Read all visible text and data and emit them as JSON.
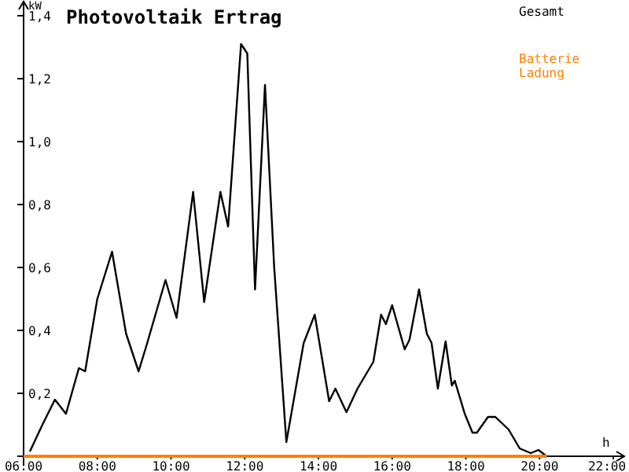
{
  "chart_data": {
    "type": "line",
    "title": "Photovoltaik Ertrag",
    "xlabel": "h",
    "ylabel": "kW",
    "xlim": [
      6,
      22
    ],
    "xticks": [
      {
        "value": 6,
        "label": "06:00"
      },
      {
        "value": 8,
        "label": "08:00"
      },
      {
        "value": 10,
        "label": "10:00"
      },
      {
        "value": 12,
        "label": "12:00"
      },
      {
        "value": 14,
        "label": "14:00"
      },
      {
        "value": 16,
        "label": "16:00"
      },
      {
        "value": 18,
        "label": "18:00"
      },
      {
        "value": 20,
        "label": "20:00"
      },
      {
        "value": 22,
        "label": "22:00"
      }
    ],
    "ylim": [
      0,
      1.4
    ],
    "yticks": [
      {
        "value": 0.2,
        "label": "0,2"
      },
      {
        "value": 0.4,
        "label": "0,4"
      },
      {
        "value": 0.6,
        "label": "0,6"
      },
      {
        "value": 0.8,
        "label": "0,8"
      },
      {
        "value": 1.0,
        "label": "1,0"
      },
      {
        "value": 1.2,
        "label": "1,2"
      },
      {
        "value": 1.4,
        "label": "1,4"
      }
    ],
    "grid": false,
    "legend": "top right",
    "marker": "none",
    "line_style": "solid",
    "series": [
      {
        "name": "Gesamt",
        "color": "#000000",
        "x": [
          6.17,
          6.51,
          6.85,
          7.15,
          7.5,
          7.67,
          8.0,
          8.4,
          8.78,
          9.12,
          9.33,
          9.85,
          10.15,
          10.6,
          10.9,
          11.34,
          11.55,
          11.9,
          12.07,
          12.28,
          12.55,
          12.8,
          13.13,
          13.6,
          13.9,
          14.29,
          14.46,
          14.76,
          15.06,
          15.49,
          15.7,
          15.83,
          16.0,
          16.34,
          16.47,
          16.73,
          16.94,
          17.07,
          17.24,
          17.45,
          17.62,
          17.7,
          17.97,
          18.18,
          18.3,
          18.6,
          18.8,
          19.16,
          19.46,
          19.76,
          19.97,
          20.19
        ],
        "values": [
          0.015,
          0.1,
          0.18,
          0.135,
          0.28,
          0.27,
          0.5,
          0.65,
          0.39,
          0.27,
          0.35,
          0.56,
          0.44,
          0.84,
          0.49,
          0.84,
          0.73,
          1.31,
          1.28,
          0.53,
          1.18,
          0.6,
          0.045,
          0.36,
          0.45,
          0.175,
          0.215,
          0.14,
          0.215,
          0.3,
          0.45,
          0.42,
          0.48,
          0.34,
          0.37,
          0.53,
          0.39,
          0.36,
          0.215,
          0.365,
          0.225,
          0.24,
          0.135,
          0.075,
          0.075,
          0.125,
          0.125,
          0.085,
          0.025,
          0.01,
          0.02,
          0
        ]
      },
      {
        "name": "Batterie Ladung",
        "color": "#ff8000",
        "x": [
          6,
          20.2
        ],
        "values": [
          0,
          0
        ]
      }
    ]
  }
}
